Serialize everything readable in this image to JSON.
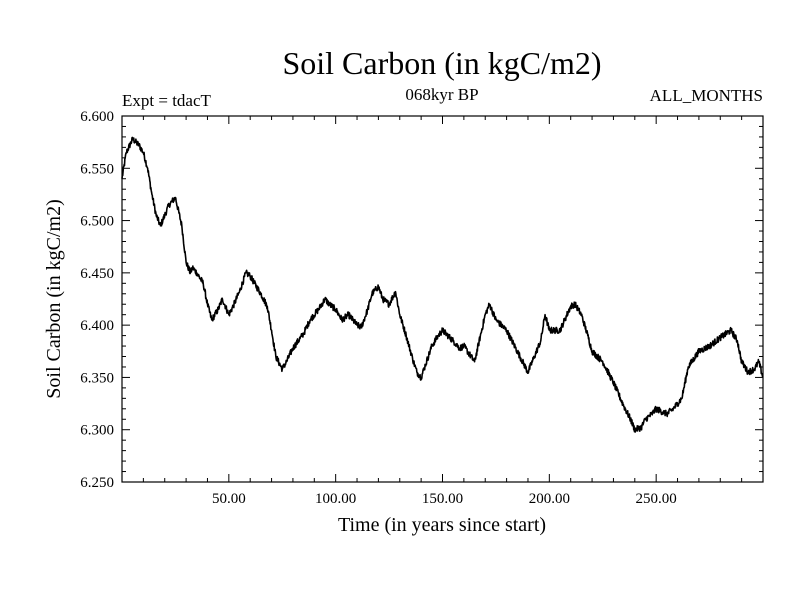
{
  "chart_data": {
    "type": "line",
    "title": "Soil Carbon (in kgC/m2)",
    "experiment_label": "Expt = tdacT",
    "period_label": "068kyr BP",
    "months_label": "ALL_MONTHS",
    "xlabel": "Time (in years since start)",
    "ylabel": "Soil Carbon (in kgC/m2)",
    "xlim": [
      0,
      300
    ],
    "ylim": [
      6.25,
      6.6
    ],
    "x_tick_labels": [
      "50.00",
      "100.00",
      "150.00",
      "200.00",
      "250.00"
    ],
    "y_tick_labels": [
      "6.250",
      "6.300",
      "6.350",
      "6.400",
      "6.450",
      "6.500",
      "6.550",
      "6.600"
    ],
    "grid": false,
    "series": [
      {
        "name": "Soil Carbon",
        "color": "#000000",
        "x": [
          0,
          2,
          5,
          8,
          10,
          12,
          14,
          16,
          18,
          20,
          22,
          25,
          28,
          30,
          32,
          33,
          35,
          38,
          40,
          42,
          45,
          47,
          50,
          52,
          55,
          58,
          60,
          62,
          65,
          68,
          70,
          72,
          75,
          77,
          80,
          85,
          88,
          92,
          95,
          97,
          100,
          103,
          106,
          110,
          112,
          115,
          117,
          120,
          122,
          125,
          128,
          130,
          133,
          136,
          138,
          140,
          142,
          145,
          148,
          150,
          155,
          158,
          160,
          165,
          170,
          172,
          175,
          180,
          185,
          190,
          193,
          196,
          198,
          200,
          205,
          210,
          212,
          215,
          218,
          220,
          225,
          230,
          235,
          238,
          240,
          243,
          245,
          248,
          250,
          255,
          258,
          262,
          265,
          270,
          275,
          280,
          285,
          288,
          290,
          293,
          296,
          298,
          300
        ],
        "y": [
          6.54,
          6.565,
          6.578,
          6.572,
          6.565,
          6.55,
          6.525,
          6.505,
          6.495,
          6.505,
          6.515,
          6.522,
          6.495,
          6.46,
          6.45,
          6.455,
          6.45,
          6.44,
          6.42,
          6.405,
          6.415,
          6.425,
          6.41,
          6.418,
          6.432,
          6.45,
          6.447,
          6.44,
          6.43,
          6.418,
          6.395,
          6.37,
          6.358,
          6.365,
          6.378,
          6.392,
          6.405,
          6.415,
          6.425,
          6.42,
          6.415,
          6.405,
          6.41,
          6.4,
          6.398,
          6.415,
          6.43,
          6.437,
          6.425,
          6.42,
          6.432,
          6.41,
          6.39,
          6.368,
          6.355,
          6.35,
          6.362,
          6.38,
          6.39,
          6.395,
          6.385,
          6.378,
          6.38,
          6.365,
          6.41,
          6.42,
          6.405,
          6.395,
          6.375,
          6.355,
          6.37,
          6.385,
          6.41,
          6.395,
          6.395,
          6.418,
          6.42,
          6.41,
          6.39,
          6.375,
          6.365,
          6.345,
          6.322,
          6.31,
          6.3,
          6.302,
          6.31,
          6.315,
          6.32,
          6.315,
          6.32,
          6.33,
          6.36,
          6.375,
          6.38,
          6.388,
          6.395,
          6.385,
          6.365,
          6.355,
          6.358,
          6.365,
          6.35
        ]
      }
    ]
  }
}
